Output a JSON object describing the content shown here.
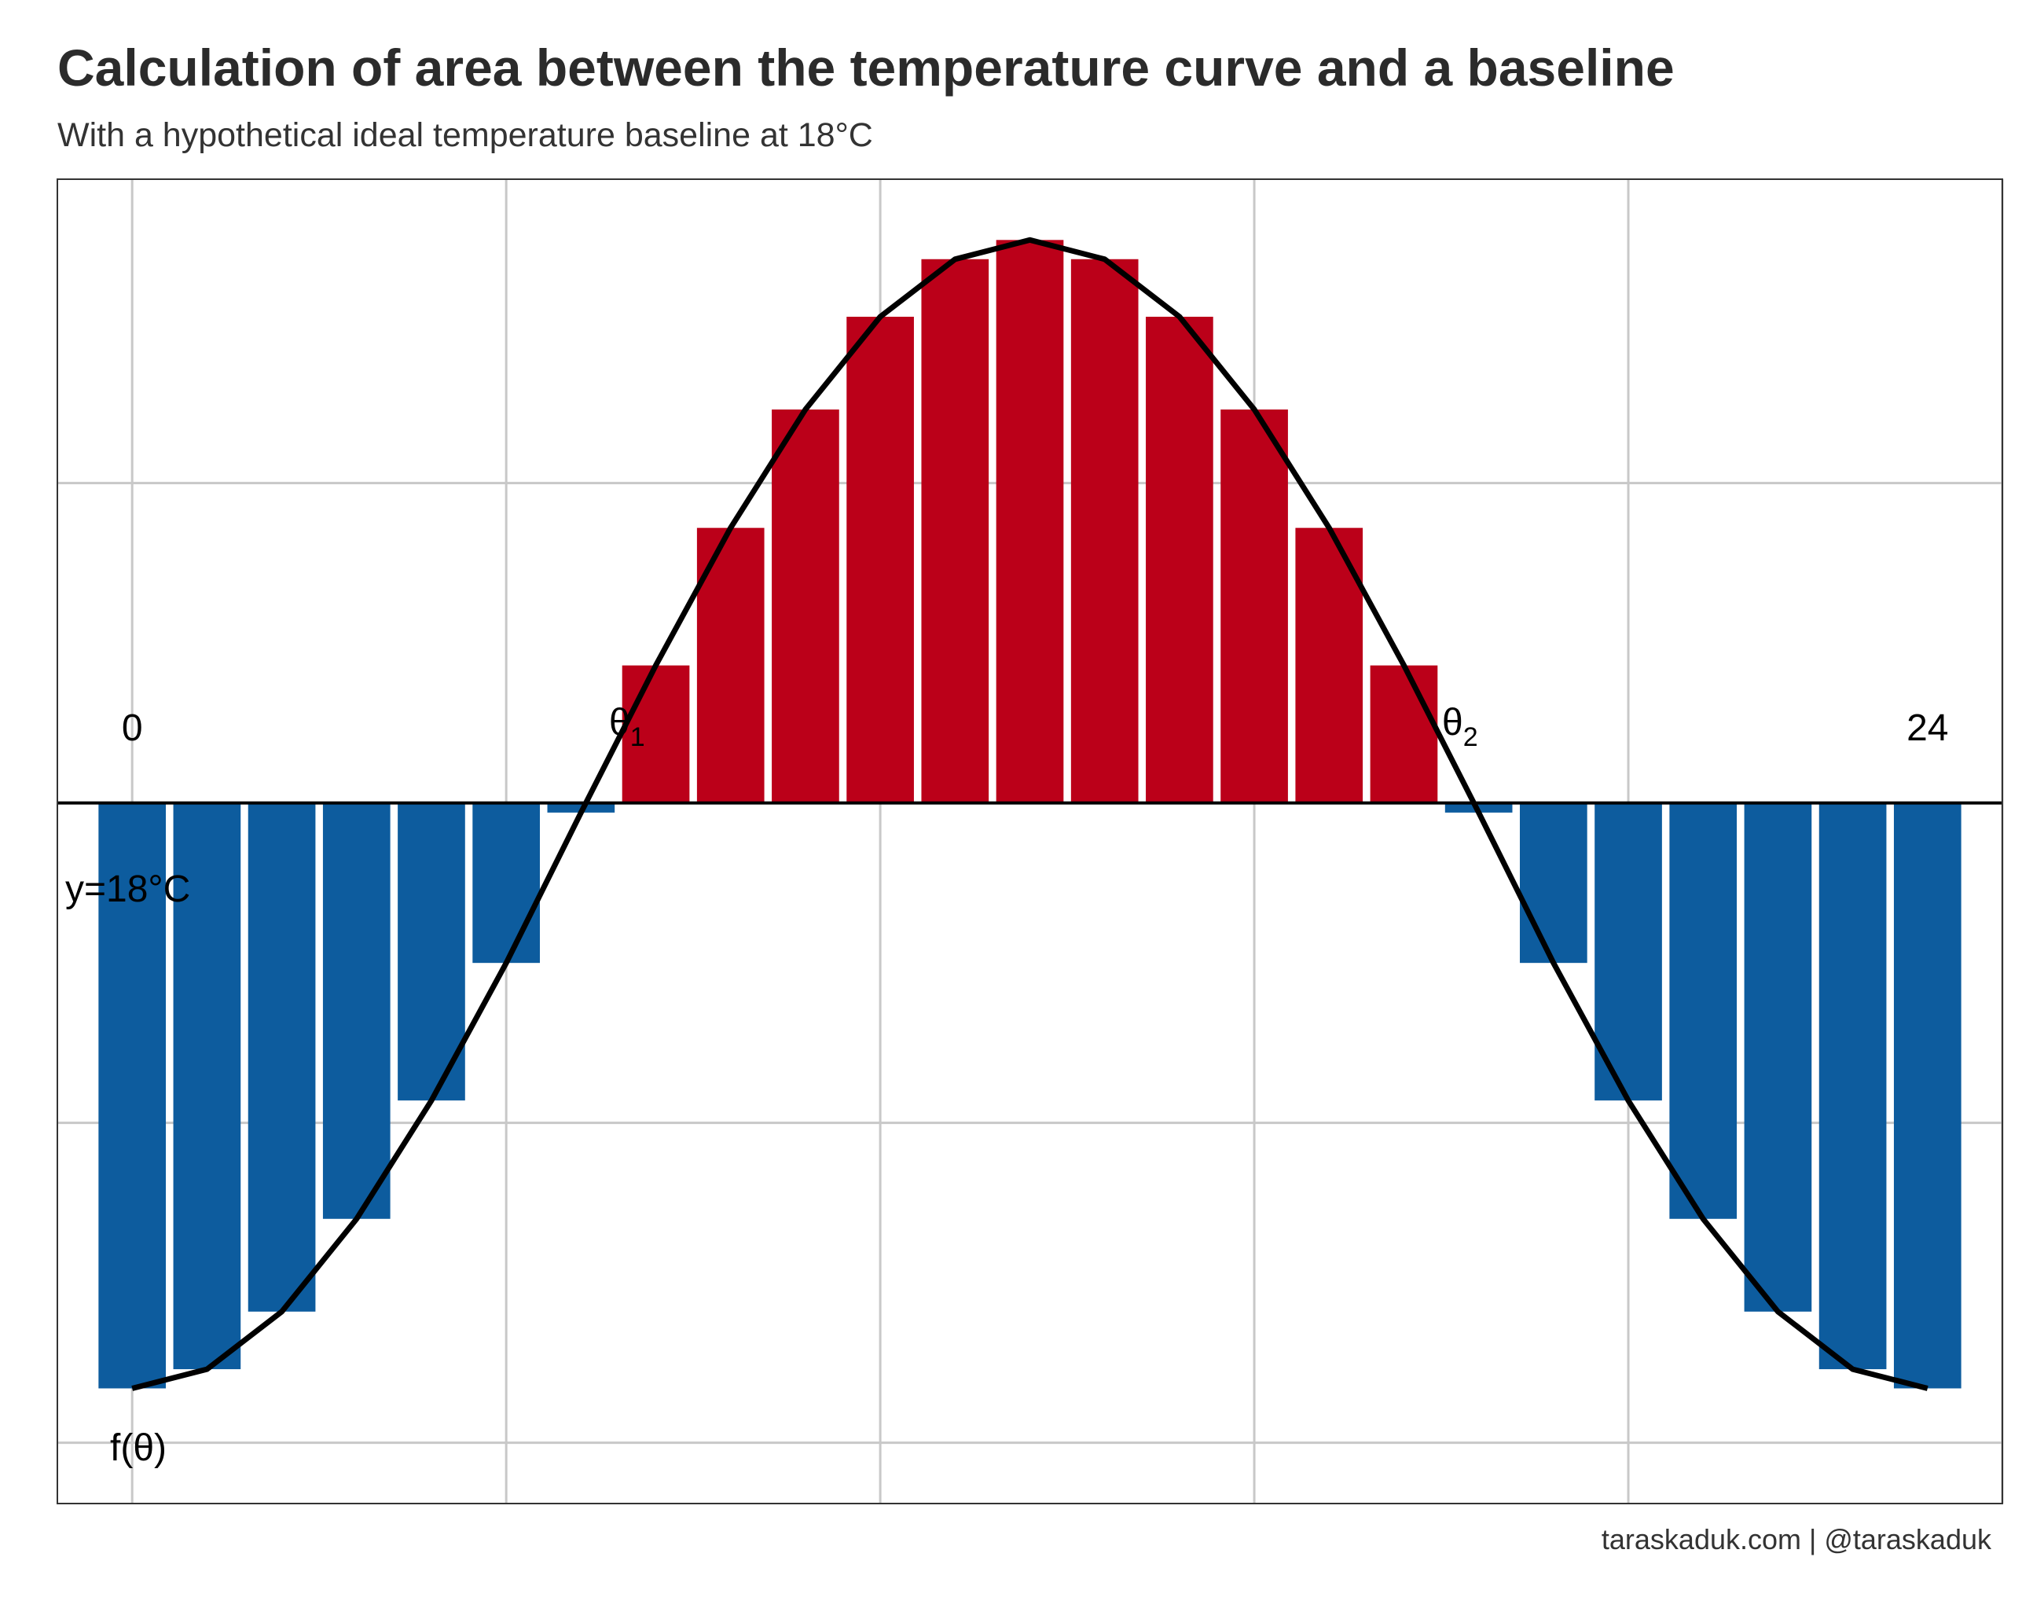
{
  "title": "Calculation of area between the temperature curve and a baseline",
  "subtitle": "With a hypothetical ideal temperature baseline at 18°C",
  "caption": "taraskaduk.com | @taraskaduk",
  "colors": {
    "above": "#BB0019",
    "below": "#0D5C9E",
    "curve": "#000000",
    "grid": "#C8C8C8",
    "baseline": "#000000",
    "panel_border": "#333333",
    "title": "#2b2b2b"
  },
  "chart_data": {
    "type": "bar",
    "baseline_value": 0,
    "xlim": [
      -1,
      25
    ],
    "ylim": [
      -2.19,
      1.95
    ],
    "grid": true,
    "legend": "none",
    "x": [
      0,
      1,
      2,
      3,
      4,
      5,
      6,
      7,
      8,
      9,
      10,
      11,
      12,
      13,
      14,
      15,
      16,
      17,
      18,
      19,
      20,
      21,
      22,
      23,
      24
    ],
    "values": [
      -1.83,
      -1.77,
      -1.59,
      -1.3,
      -0.93,
      -0.5,
      -0.03,
      0.43,
      0.86,
      1.23,
      1.52,
      1.7,
      1.76,
      1.7,
      1.52,
      1.23,
      0.86,
      0.43,
      -0.03,
      -0.5,
      -0.93,
      -1.3,
      -1.59,
      -1.77,
      -1.83
    ],
    "curve": {
      "x": [
        0,
        1,
        2,
        3,
        4,
        5,
        6,
        7,
        8,
        9,
        10,
        11,
        12,
        13,
        14,
        15,
        16,
        17,
        18,
        19,
        20,
        21,
        22,
        23,
        24
      ],
      "y": [
        -1.83,
        -1.77,
        -1.59,
        -1.3,
        -0.93,
        -0.5,
        -0.03,
        0.43,
        0.86,
        1.23,
        1.52,
        1.7,
        1.76,
        1.7,
        1.52,
        1.23,
        0.86,
        0.43,
        -0.03,
        -0.5,
        -0.93,
        -1.3,
        -1.59,
        -1.77,
        -1.83
      ]
    },
    "annotations": {
      "start": "0",
      "end": "24",
      "theta1": {
        "base": "θ",
        "sub": "1"
      },
      "theta2": {
        "base": "θ",
        "sub": "2"
      },
      "baseline_label": "y=18°C",
      "function_label": "f(θ)"
    }
  }
}
